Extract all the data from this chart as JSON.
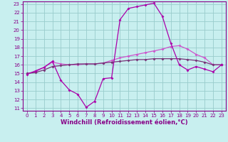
{
  "xlabel": "Windchill (Refroidissement éolien,°C)",
  "bg_color": "#c8efef",
  "grid_color": "#99cccc",
  "line_color1": "#aa00aa",
  "line_color2": "#cc55cc",
  "line_color3": "#773377",
  "xlim": [
    -0.5,
    23.5
  ],
  "ylim": [
    10.7,
    23.3
  ],
  "xticks": [
    0,
    1,
    2,
    3,
    4,
    5,
    6,
    7,
    8,
    9,
    10,
    11,
    12,
    13,
    14,
    15,
    16,
    17,
    18,
    19,
    20,
    21,
    22,
    23
  ],
  "yticks": [
    11,
    12,
    13,
    14,
    15,
    16,
    17,
    18,
    19,
    20,
    21,
    22,
    23
  ],
  "curve1_x": [
    0,
    1,
    2,
    3,
    4,
    5,
    6,
    7,
    8,
    9,
    10,
    11,
    12,
    13,
    14,
    15,
    16,
    17,
    18,
    19,
    20,
    21,
    22,
    23
  ],
  "curve1_y": [
    14.9,
    15.3,
    15.7,
    16.4,
    14.2,
    13.1,
    12.6,
    11.1,
    11.8,
    14.4,
    14.5,
    21.2,
    22.5,
    22.7,
    22.9,
    23.1,
    21.6,
    18.5,
    16.0,
    15.4,
    15.8,
    15.5,
    15.2,
    16.0
  ],
  "curve2_x": [
    0,
    1,
    2,
    3,
    4,
    5,
    6,
    7,
    8,
    9,
    10,
    11,
    12,
    13,
    14,
    15,
    16,
    17,
    18,
    19,
    20,
    21,
    22,
    23
  ],
  "curve2_y": [
    15.0,
    15.2,
    15.7,
    16.3,
    16.1,
    16.0,
    16.0,
    16.1,
    16.1,
    16.2,
    16.5,
    16.8,
    17.0,
    17.2,
    17.4,
    17.6,
    17.8,
    18.1,
    18.2,
    17.8,
    17.2,
    16.8,
    16.0,
    16.0
  ],
  "curve3_x": [
    0,
    1,
    2,
    3,
    4,
    5,
    6,
    7,
    8,
    9,
    10,
    11,
    12,
    13,
    14,
    15,
    16,
    17,
    18,
    19,
    20,
    21,
    22,
    23
  ],
  "curve3_y": [
    15.0,
    15.1,
    15.4,
    15.8,
    15.9,
    16.0,
    16.1,
    16.1,
    16.1,
    16.2,
    16.3,
    16.4,
    16.5,
    16.6,
    16.6,
    16.7,
    16.7,
    16.7,
    16.7,
    16.6,
    16.5,
    16.3,
    16.0,
    16.0
  ],
  "marker": "D",
  "markersize": 2.0,
  "linewidth": 0.9,
  "xlabel_fontsize": 6.0,
  "tick_fontsize": 5.0,
  "tick_color": "#880088",
  "spine_color": "#880088"
}
